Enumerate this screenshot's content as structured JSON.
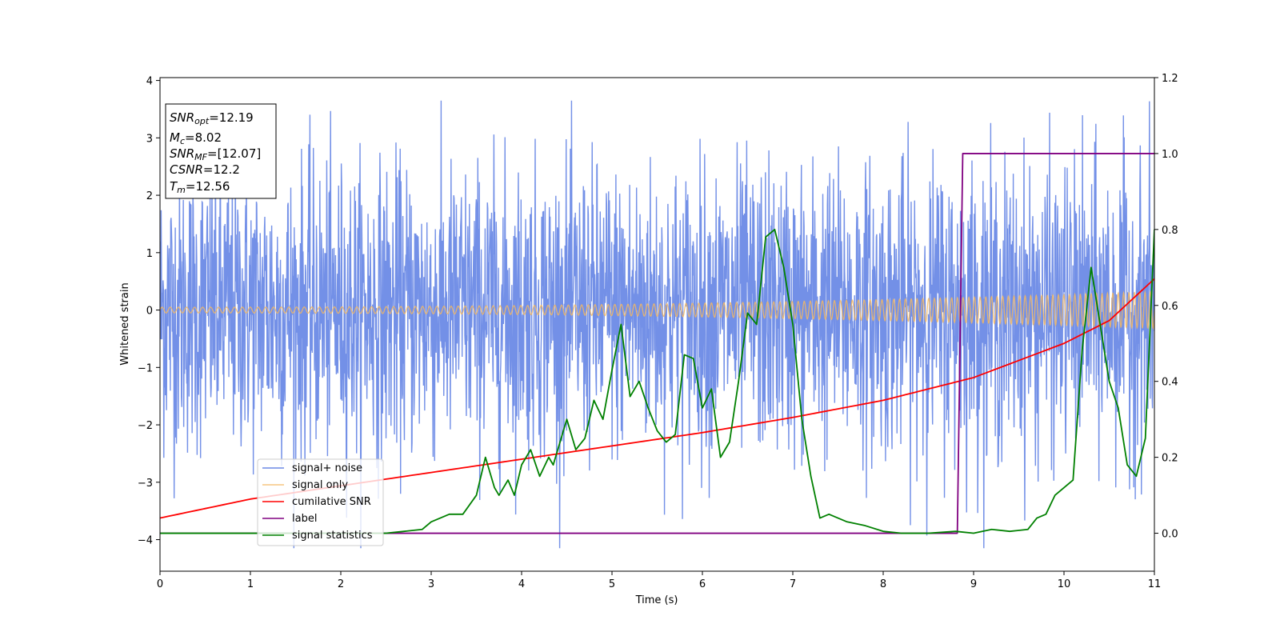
{
  "chart_data": {
    "type": "line",
    "xlabel": "Time (s)",
    "ylabel": "Whitened strain",
    "xlim": [
      0,
      11
    ],
    "ylim": [
      -4.55,
      4.05
    ],
    "y2lim": [
      -0.1,
      1.2
    ],
    "xticks": [
      0,
      1,
      2,
      3,
      4,
      5,
      6,
      7,
      8,
      9,
      10,
      11
    ],
    "yticks": [
      -4,
      -3,
      -2,
      -1,
      0,
      1,
      2,
      3,
      4
    ],
    "y2ticks": [
      "0.0",
      "0.2",
      "0.4",
      "0.6",
      "0.8",
      "1.0",
      "1.2"
    ],
    "y2tick_values": [
      0.0,
      0.2,
      0.4,
      0.6,
      0.8,
      1.0,
      1.2
    ],
    "grid": false,
    "legend_placement": "lower-left",
    "annotation": {
      "snr_opt": {
        "base": "SNR",
        "sub": "opt",
        "value": "=12.19"
      },
      "mc": {
        "base": "M",
        "sub": "c",
        "value": "=8.02"
      },
      "snr_mf": {
        "base": "SNR",
        "sub": "MF",
        "value": "=[12.07]"
      },
      "csnr": {
        "base": "CSNR",
        "sub": "",
        "value": "=12.2"
      },
      "tm": {
        "base": "T",
        "sub": "m",
        "value": "=12.56"
      }
    },
    "series": [
      {
        "name": "signal+ noise",
        "axis": "left",
        "color": "#6b8ae6",
        "kind": "noise",
        "amplitude_range": [
          -4.15,
          3.65
        ],
        "typical_envelope": 2.0
      },
      {
        "name": "signal only",
        "axis": "left",
        "color": "#f4b860",
        "kind": "chirp",
        "amplitude_start": 0.05,
        "amplitude_end": 0.32
      },
      {
        "name": "cumilative SNR",
        "axis": "right",
        "color": "#ff0000",
        "x": [
          0,
          1,
          2,
          3,
          4,
          5,
          6,
          7,
          8,
          9,
          10,
          10.5,
          11
        ],
        "values": [
          0.04,
          0.09,
          0.125,
          0.16,
          0.195,
          0.23,
          0.265,
          0.305,
          0.35,
          0.41,
          0.5,
          0.56,
          0.67
        ]
      },
      {
        "name": "label",
        "axis": "right",
        "color": "#800080",
        "x": [
          0,
          8.82,
          8.88,
          11
        ],
        "values": [
          0.0,
          0.0,
          1.0,
          1.0
        ]
      },
      {
        "name": "signal statistics",
        "axis": "right",
        "color": "#008000",
        "x": [
          0,
          2.5,
          2.7,
          2.9,
          3.0,
          3.1,
          3.2,
          3.35,
          3.5,
          3.6,
          3.7,
          3.75,
          3.85,
          3.92,
          4.0,
          4.1,
          4.2,
          4.3,
          4.35,
          4.5,
          4.6,
          4.7,
          4.8,
          4.9,
          5.0,
          5.1,
          5.2,
          5.3,
          5.4,
          5.5,
          5.6,
          5.7,
          5.8,
          5.9,
          6.0,
          6.1,
          6.2,
          6.3,
          6.4,
          6.5,
          6.6,
          6.7,
          6.8,
          6.9,
          7.0,
          7.1,
          7.2,
          7.3,
          7.4,
          7.5,
          7.6,
          7.8,
          8.0,
          8.2,
          8.5,
          8.8,
          9.0,
          9.2,
          9.4,
          9.6,
          9.7,
          9.8,
          9.9,
          10.0,
          10.1,
          10.2,
          10.3,
          10.4,
          10.5,
          10.6,
          10.7,
          10.8,
          10.9,
          11.0
        ],
        "values": [
          0.0,
          0.0,
          0.005,
          0.01,
          0.03,
          0.04,
          0.05,
          0.05,
          0.1,
          0.2,
          0.12,
          0.1,
          0.14,
          0.1,
          0.18,
          0.22,
          0.15,
          0.2,
          0.18,
          0.3,
          0.22,
          0.25,
          0.35,
          0.3,
          0.43,
          0.55,
          0.36,
          0.4,
          0.33,
          0.27,
          0.24,
          0.26,
          0.47,
          0.46,
          0.33,
          0.38,
          0.2,
          0.24,
          0.4,
          0.58,
          0.55,
          0.78,
          0.8,
          0.7,
          0.55,
          0.3,
          0.15,
          0.04,
          0.05,
          0.04,
          0.03,
          0.02,
          0.005,
          0.0,
          0.0,
          0.005,
          0.0,
          0.01,
          0.005,
          0.01,
          0.04,
          0.05,
          0.1,
          0.12,
          0.14,
          0.48,
          0.7,
          0.55,
          0.4,
          0.33,
          0.18,
          0.15,
          0.25,
          0.8
        ]
      }
    ]
  }
}
